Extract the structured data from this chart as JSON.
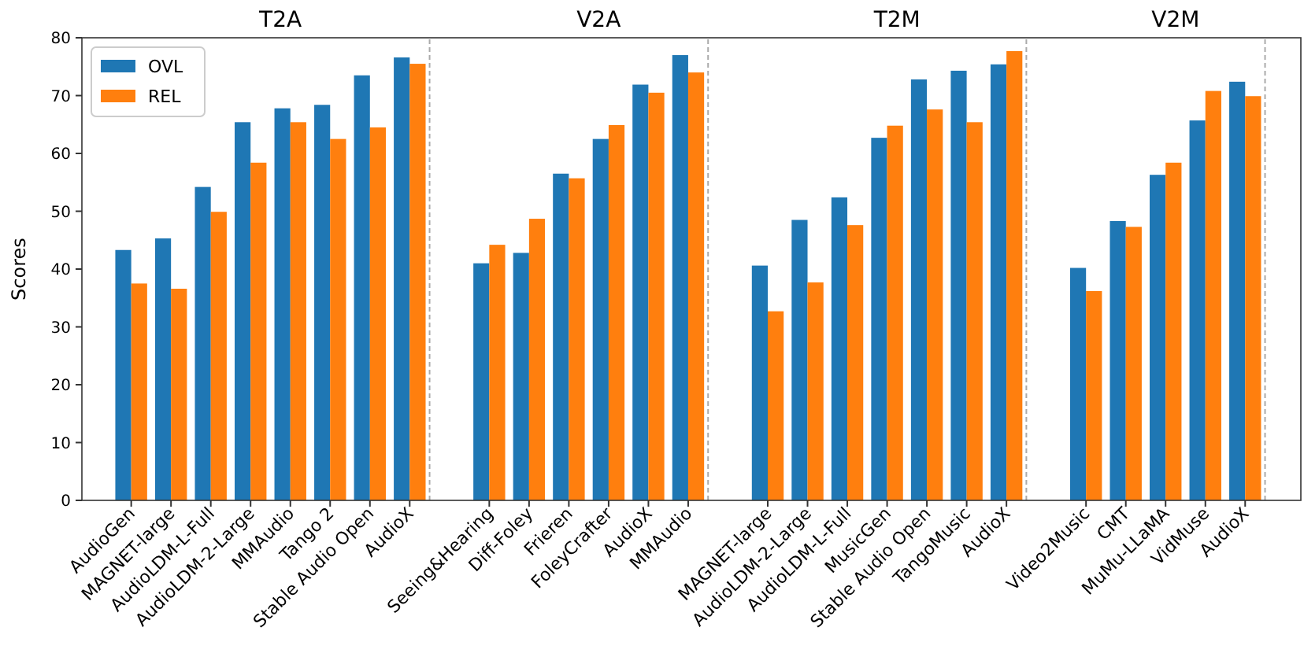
{
  "chart_data": {
    "type": "bar",
    "ylabel": "Scores",
    "annotations": [
      "T2A",
      "V2A",
      "T2M",
      "V2M"
    ],
    "categories": [
      "AudioGen",
      "MAGNET-large",
      "AudioLDM-L-Full",
      "AudioLDM-2-Large",
      "MMAudio",
      "Tango 2",
      "Stable Audio Open",
      "AudioX",
      null,
      "Seeing&Hearing",
      "Diff-Foley",
      "Frieren",
      "FoleyCrafter",
      "AudioX",
      "MMAudio",
      null,
      "MAGNET-large",
      "AudioLDM-2-Large",
      "AudioLDM-L-Full",
      "MusicGen",
      "Stable Audio Open",
      "TangoMusic",
      "AudioX",
      null,
      "Video2Music",
      "CMT",
      "MuMu-LLaMA",
      "VidMuse",
      "AudioX"
    ],
    "series": [
      {
        "name": "OVL",
        "color": "#1f77b4",
        "values": [
          43.3,
          45.3,
          54.2,
          65.4,
          67.8,
          68.4,
          73.5,
          76.6,
          null,
          41.0,
          42.8,
          56.5,
          62.5,
          71.9,
          77.0,
          null,
          40.6,
          48.5,
          52.4,
          62.7,
          72.8,
          74.3,
          75.4,
          null,
          40.2,
          48.3,
          56.3,
          65.7,
          72.4
        ]
      },
      {
        "name": "REL",
        "color": "#ff7f0e",
        "values": [
          37.5,
          36.6,
          49.9,
          58.4,
          65.4,
          62.5,
          64.5,
          75.5,
          null,
          44.2,
          48.7,
          55.7,
          64.9,
          70.5,
          74.0,
          null,
          32.7,
          37.7,
          47.6,
          64.8,
          67.6,
          65.4,
          77.7,
          null,
          36.2,
          47.3,
          58.4,
          70.8,
          69.9
        ]
      }
    ],
    "ylim": [
      0,
      80
    ],
    "yticks": [
      0,
      10,
      20,
      30,
      40,
      50,
      60,
      70,
      80
    ],
    "legend": "top left"
  }
}
